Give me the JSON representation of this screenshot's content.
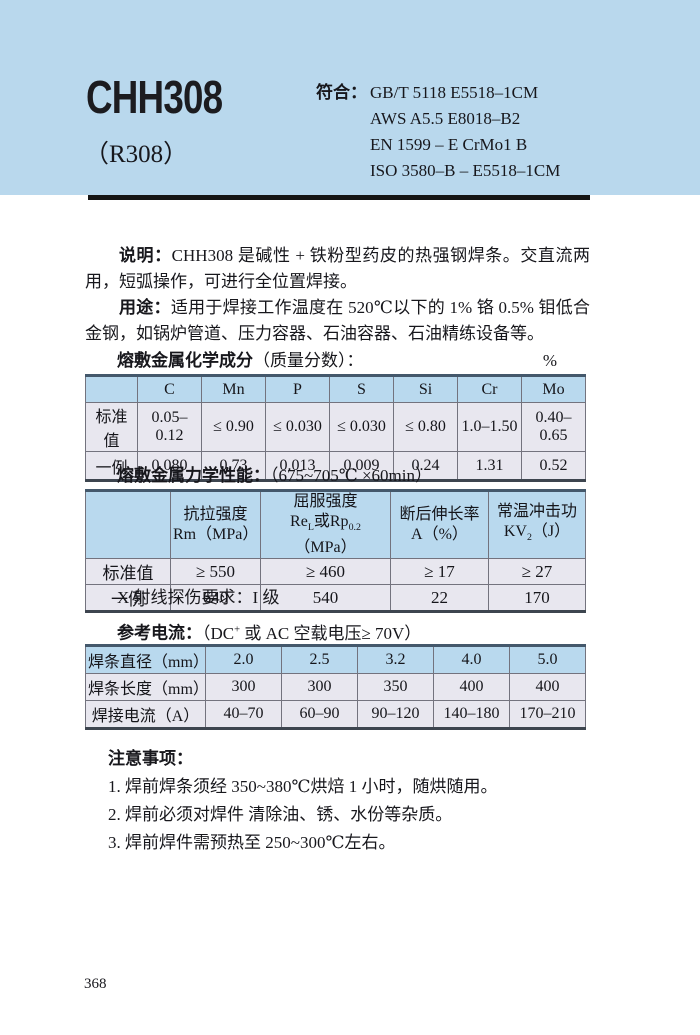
{
  "header": {
    "model": "CHH308",
    "alt_model": "（R308）",
    "standards_label": "符合：",
    "standards": [
      "GB/T 5118 E5518–1CM",
      "AWS A5.5 E8018–B2",
      "EN 1599 – E CrMo1 B",
      "ISO 3580–B – E5518–1CM"
    ]
  },
  "description": {
    "shuoming_label": "说明：",
    "shuoming_text": "CHH308 是碱性 + 铁粉型药皮的热强钢焊条。交直流两用，短弧操作，可进行全位置焊接。",
    "yongtu_label": "用途：",
    "yongtu_text": "适用于焊接工作温度在 520℃以下的 1% 铬 0.5% 钼低合金钢，如锅炉管道、压力容器、石油容器、石油精练设备等。"
  },
  "chemical_table": {
    "title_label": "熔敷金属化学成分",
    "title_note": "（质量分数）：",
    "unit": "%",
    "columns": [
      "",
      "C",
      "Mn",
      "P",
      "S",
      "Si",
      "Cr",
      "Mo"
    ],
    "rows": [
      {
        "label": "标准值",
        "values": [
          "0.05–0.12",
          "≤ 0.90",
          "≤ 0.030",
          "≤ 0.030",
          "≤ 0.80",
          "1.0–1.50",
          "0.40–0.65"
        ]
      },
      {
        "label": "一例",
        "values": [
          "0.080",
          "0.73",
          "0.013",
          "0.009",
          "0.24",
          "1.31",
          "0.52"
        ]
      }
    ]
  },
  "mechanical_table": {
    "title_label": "熔敷金属力学性能：",
    "title_note": "（675~705℃ ×60min）",
    "columns": [
      "",
      "抗拉强度\nRm（MPa）",
      "屈服强度\nRe_{L}或Rp_{0.2}（MPa）",
      "断后伸长率\nA（%）",
      "常温冲击功\nKV_{2}（J）"
    ],
    "rows": [
      {
        "label": "标准值",
        "values": [
          "≥ 550",
          "≥ 460",
          "≥ 17",
          "≥ 27"
        ]
      },
      {
        "label": "一例",
        "values": [
          "640",
          "540",
          "22",
          "170"
        ]
      }
    ],
    "xray_note": "X 射线探伤要求：I 级"
  },
  "current_table": {
    "title_label": "参考电流：",
    "title_note": "（DC^{+} 或 AC 空载电压≥ 70V）",
    "rows": [
      {
        "label": "焊条直径（mm）",
        "values": [
          "2.0",
          "2.5",
          "3.2",
          "4.0",
          "5.0"
        ],
        "header": true
      },
      {
        "label": "焊条长度（mm）",
        "values": [
          "300",
          "300",
          "350",
          "400",
          "400"
        ]
      },
      {
        "label": "焊接电流（A）",
        "values": [
          "40–70",
          "60–90",
          "90–120",
          "140–180",
          "170–210"
        ]
      }
    ]
  },
  "notes": {
    "title": "注意事项：",
    "items": [
      "1. 焊前焊条须经 350~380℃烘焙 1 小时，随烘随用。",
      "2. 焊前必须对焊件 清除油、锈、水份等杂质。",
      "3. 焊前焊件需预热至 250~300℃左右。"
    ]
  },
  "page": {
    "number": "368"
  },
  "colors": {
    "header_bg": "#b9d8ed",
    "table_header_blue": "#b9d9ee",
    "table_row_lavender": "#e8e7ef",
    "rule_black": "#151515"
  }
}
